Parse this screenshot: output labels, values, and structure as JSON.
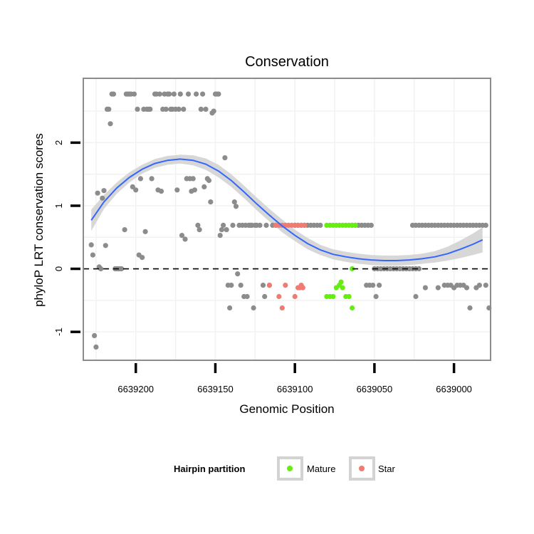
{
  "chart_data": {
    "type": "scatter",
    "title": "Conservation",
    "xlabel": "Genomic Position",
    "ylabel": "phyloP LRT conservation scores",
    "xlim": [
      6639233,
      6638977
    ],
    "ylim": [
      -1.45,
      3.02
    ],
    "x_reversed": true,
    "x_ticks": [
      6639200,
      6639150,
      6639100,
      6639050,
      6639000
    ],
    "x_tick_labels": [
      "6639200",
      "6639150",
      "6639100",
      "6639050",
      "6639000"
    ],
    "y_ticks": [
      -1,
      0,
      1,
      2
    ],
    "y_tick_labels": [
      "-1",
      "0",
      "1",
      "2"
    ],
    "reference_line": {
      "y": 0,
      "style": "dashed",
      "color": "#000000"
    },
    "colors": {
      "other": "#8c8c8c",
      "Mature": "#66ee11",
      "Star": "#f07b72",
      "smooth": "#3366ff",
      "band": "#d3d3d3",
      "panel_border": "#8c8c8c",
      "grid": "#f2f2f2"
    },
    "legend": {
      "title": "Hairpin partition",
      "entries": [
        "Mature",
        "Star"
      ],
      "position": "bottom"
    },
    "smooth": {
      "x": [
        6639228,
        6639220,
        6639212,
        6639204,
        6639196,
        6639188,
        6639180,
        6639172,
        6639164,
        6639156,
        6639148,
        6639140,
        6639132,
        6639124,
        6639116,
        6639108,
        6639100,
        6639092,
        6639084,
        6639076,
        6639068,
        6639060,
        6639052,
        6639044,
        6639036,
        6639028,
        6639020,
        6639012,
        6639004,
        6638996,
        6638988,
        6638982
      ],
      "y": [
        0.77,
        1.06,
        1.28,
        1.45,
        1.58,
        1.67,
        1.72,
        1.74,
        1.72,
        1.66,
        1.55,
        1.4,
        1.22,
        1.03,
        0.85,
        0.68,
        0.53,
        0.4,
        0.3,
        0.23,
        0.19,
        0.16,
        0.14,
        0.13,
        0.13,
        0.14,
        0.16,
        0.19,
        0.24,
        0.31,
        0.39,
        0.46
      ],
      "lower": [
        0.6,
        0.95,
        1.19,
        1.37,
        1.51,
        1.6,
        1.65,
        1.67,
        1.64,
        1.57,
        1.45,
        1.3,
        1.12,
        0.93,
        0.75,
        0.58,
        0.44,
        0.31,
        0.22,
        0.15,
        0.11,
        0.08,
        0.06,
        0.05,
        0.05,
        0.06,
        0.08,
        0.1,
        0.13,
        0.17,
        0.22,
        0.26
      ],
      "upper": [
        0.94,
        1.17,
        1.37,
        1.53,
        1.65,
        1.74,
        1.79,
        1.81,
        1.8,
        1.75,
        1.65,
        1.5,
        1.32,
        1.13,
        0.95,
        0.78,
        0.62,
        0.49,
        0.38,
        0.31,
        0.27,
        0.24,
        0.22,
        0.21,
        0.21,
        0.22,
        0.24,
        0.28,
        0.35,
        0.45,
        0.56,
        0.66
      ]
    },
    "series": [
      {
        "name": "other",
        "points": [
          [
            6639228,
            0.38
          ],
          [
            6639227,
            0.22
          ],
          [
            6639226,
            -1.06
          ],
          [
            6639225,
            -1.24
          ],
          [
            6639224,
            1.2
          ],
          [
            6639223,
            0.03
          ],
          [
            6639222,
            0.0
          ],
          [
            6639221,
            1.12
          ],
          [
            6639220,
            1.24
          ],
          [
            6639219,
            0.37
          ],
          [
            6639218,
            2.53
          ],
          [
            6639217,
            2.53
          ],
          [
            6639216,
            2.3
          ],
          [
            6639215,
            2.77
          ],
          [
            6639214,
            2.77
          ],
          [
            6639213,
            0.0
          ],
          [
            6639212,
            0.0
          ],
          [
            6639211,
            0.0
          ],
          [
            6639210,
            0.0
          ],
          [
            6639209,
            0.0
          ],
          [
            6639207,
            0.62
          ],
          [
            6639206,
            2.77
          ],
          [
            6639205,
            2.77
          ],
          [
            6639204,
            2.77
          ],
          [
            6639203,
            2.77
          ],
          [
            6639202,
            1.3
          ],
          [
            6639201,
            2.77
          ],
          [
            6639200,
            1.25
          ],
          [
            6639199,
            2.53
          ],
          [
            6639198,
            0.22
          ],
          [
            6639197,
            1.43
          ],
          [
            6639196,
            0.18
          ],
          [
            6639195,
            2.53
          ],
          [
            6639194,
            0.59
          ],
          [
            6639193,
            2.53
          ],
          [
            6639192,
            2.53
          ],
          [
            6639191,
            2.53
          ],
          [
            6639190,
            1.43
          ],
          [
            6639188,
            2.77
          ],
          [
            6639187,
            2.77
          ],
          [
            6639186,
            1.25
          ],
          [
            6639185,
            2.77
          ],
          [
            6639184,
            1.23
          ],
          [
            6639183,
            2.53
          ],
          [
            6639182,
            2.77
          ],
          [
            6639181,
            2.53
          ],
          [
            6639180,
            2.77
          ],
          [
            6639179,
            2.77
          ],
          [
            6639178,
            2.53
          ],
          [
            6639177,
            2.53
          ],
          [
            6639176,
            2.77
          ],
          [
            6639175,
            2.53
          ],
          [
            6639174,
            1.25
          ],
          [
            6639173,
            2.53
          ],
          [
            6639172,
            2.77
          ],
          [
            6639171,
            0.53
          ],
          [
            6639170,
            2.53
          ],
          [
            6639169,
            0.47
          ],
          [
            6639168,
            1.43
          ],
          [
            6639167,
            2.77
          ],
          [
            6639166,
            1.43
          ],
          [
            6639165,
            1.23
          ],
          [
            6639164,
            1.43
          ],
          [
            6639163,
            1.25
          ],
          [
            6639162,
            2.77
          ],
          [
            6639161,
            0.69
          ],
          [
            6639160,
            0.62
          ],
          [
            6639159,
            2.53
          ],
          [
            6639158,
            2.77
          ],
          [
            6639157,
            1.3
          ],
          [
            6639156,
            2.53
          ],
          [
            6639155,
            1.43
          ],
          [
            6639154,
            1.4
          ],
          [
            6639153,
            1.06
          ],
          [
            6639152,
            2.47
          ],
          [
            6639151,
            2.5
          ],
          [
            6639150,
            2.77
          ],
          [
            6639149,
            2.77
          ],
          [
            6639148,
            2.77
          ],
          [
            6639147,
            0.53
          ],
          [
            6639146,
            0.62
          ],
          [
            6639145,
            0.69
          ],
          [
            6639144,
            1.76
          ],
          [
            6639143,
            0.62
          ],
          [
            6639142,
            -0.26
          ],
          [
            6639141,
            -0.62
          ],
          [
            6639140,
            -0.26
          ],
          [
            6639139,
            0.69
          ],
          [
            6639138,
            1.06
          ],
          [
            6639137,
            0.99
          ],
          [
            6639136,
            -0.08
          ],
          [
            6639135,
            0.69
          ],
          [
            6639134,
            -0.26
          ],
          [
            6639133,
            0.69
          ],
          [
            6639132,
            -0.44
          ],
          [
            6639131,
            0.69
          ],
          [
            6639130,
            -0.44
          ],
          [
            6639129,
            0.69
          ],
          [
            6639128,
            0.69
          ],
          [
            6639127,
            0.69
          ],
          [
            6639126,
            -0.62
          ],
          [
            6639125,
            0.69
          ],
          [
            6639124,
            0.69
          ],
          [
            6639122,
            0.69
          ],
          [
            6639120,
            -0.26
          ],
          [
            6639119,
            -0.44
          ],
          [
            6639118,
            0.69
          ],
          [
            6639116,
            -0.26
          ],
          [
            6639114,
            0.69
          ],
          [
            6639112,
            0.69
          ],
          [
            6639100,
            0.69
          ],
          [
            6639098,
            0.69
          ],
          [
            6639096,
            0.69
          ],
          [
            6639094,
            0.69
          ],
          [
            6639092,
            0.69
          ],
          [
            6639090,
            0.69
          ],
          [
            6639088,
            0.69
          ],
          [
            6639086,
            0.69
          ],
          [
            6639084,
            0.69
          ],
          [
            6639064,
            0.69
          ],
          [
            6639062,
            0.69
          ],
          [
            6639060,
            0.69
          ],
          [
            6639058,
            0.69
          ],
          [
            6639056,
            0.69
          ],
          [
            6639054,
            0.69
          ],
          [
            6639052,
            0.69
          ],
          [
            6639050,
            0.0
          ],
          [
            6639048,
            0.0
          ],
          [
            6639046,
            0.0
          ],
          [
            6639044,
            0.0
          ],
          [
            6639055,
            -0.26
          ],
          [
            6639053,
            -0.26
          ],
          [
            6639051,
            -0.26
          ],
          [
            6639049,
            -0.44
          ],
          [
            6639047,
            -0.26
          ],
          [
            6639042,
            0.0
          ],
          [
            6639040,
            0.0
          ],
          [
            6639038,
            0.0
          ],
          [
            6639036,
            0.0
          ],
          [
            6639034,
            0.0
          ],
          [
            6639032,
            0.0
          ],
          [
            6639030,
            0.0
          ],
          [
            6639028,
            0.0
          ],
          [
            6639026,
            0.0
          ],
          [
            6639024,
            0.0
          ],
          [
            6639022,
            0.0
          ],
          [
            6639026,
            0.69
          ],
          [
            6639024,
            0.69
          ],
          [
            6639022,
            0.69
          ],
          [
            6639020,
            0.69
          ],
          [
            6639018,
            0.69
          ],
          [
            6639016,
            0.69
          ],
          [
            6639014,
            0.69
          ],
          [
            6639012,
            0.69
          ],
          [
            6639010,
            0.69
          ],
          [
            6639008,
            0.69
          ],
          [
            6639006,
            0.69
          ],
          [
            6639004,
            0.69
          ],
          [
            6639002,
            0.69
          ],
          [
            6639000,
            0.69
          ],
          [
            6638998,
            0.69
          ],
          [
            6638996,
            0.69
          ],
          [
            6638994,
            0.69
          ],
          [
            6638992,
            0.69
          ],
          [
            6638990,
            0.69
          ],
          [
            6638988,
            0.69
          ],
          [
            6638986,
            0.69
          ],
          [
            6638984,
            0.69
          ],
          [
            6638982,
            0.69
          ],
          [
            6638980,
            0.69
          ],
          [
            6639024,
            -0.44
          ],
          [
            6639018,
            -0.3
          ],
          [
            6639010,
            -0.3
          ],
          [
            6639006,
            -0.26
          ],
          [
            6639004,
            -0.26
          ],
          [
            6639002,
            -0.26
          ],
          [
            6639000,
            -0.3
          ],
          [
            6638998,
            -0.26
          ],
          [
            6638996,
            -0.26
          ],
          [
            6638994,
            -0.26
          ],
          [
            6638992,
            -0.3
          ],
          [
            6638990,
            -0.62
          ],
          [
            6638986,
            -0.3
          ],
          [
            6638984,
            -0.26
          ],
          [
            6638980,
            -0.26
          ],
          [
            6638978,
            -0.62
          ]
        ]
      },
      {
        "name": "Mature",
        "points": [
          [
            6639080,
            0.69
          ],
          [
            6639078,
            0.69
          ],
          [
            6639076,
            0.69
          ],
          [
            6639074,
            0.69
          ],
          [
            6639072,
            0.69
          ],
          [
            6639070,
            0.69
          ],
          [
            6639068,
            0.69
          ],
          [
            6639066,
            0.69
          ],
          [
            6639064,
            0.69
          ],
          [
            6639062,
            0.69
          ],
          [
            6639064,
            0.0
          ],
          [
            6639080,
            -0.44
          ],
          [
            6639078,
            -0.44
          ],
          [
            6639076,
            -0.44
          ],
          [
            6639074,
            -0.3
          ],
          [
            6639072,
            -0.26
          ],
          [
            6639071,
            -0.21
          ],
          [
            6639070,
            -0.3
          ],
          [
            6639068,
            -0.44
          ],
          [
            6639066,
            -0.44
          ],
          [
            6639064,
            -0.62
          ]
        ]
      },
      {
        "name": "Star",
        "points": [
          [
            6639112,
            0.69
          ],
          [
            6639110,
            0.69
          ],
          [
            6639108,
            0.69
          ],
          [
            6639106,
            0.69
          ],
          [
            6639104,
            0.69
          ],
          [
            6639102,
            0.69
          ],
          [
            6639100,
            0.69
          ],
          [
            6639098,
            0.69
          ],
          [
            6639096,
            0.69
          ],
          [
            6639094,
            0.69
          ],
          [
            6639116,
            -0.26
          ],
          [
            6639110,
            -0.44
          ],
          [
            6639108,
            -0.62
          ],
          [
            6639106,
            -0.26
          ],
          [
            6639100,
            -0.44
          ],
          [
            6639098,
            -0.3
          ],
          [
            6639097,
            -0.3
          ],
          [
            6639096,
            -0.26
          ],
          [
            6639095,
            -0.3
          ]
        ]
      }
    ]
  }
}
